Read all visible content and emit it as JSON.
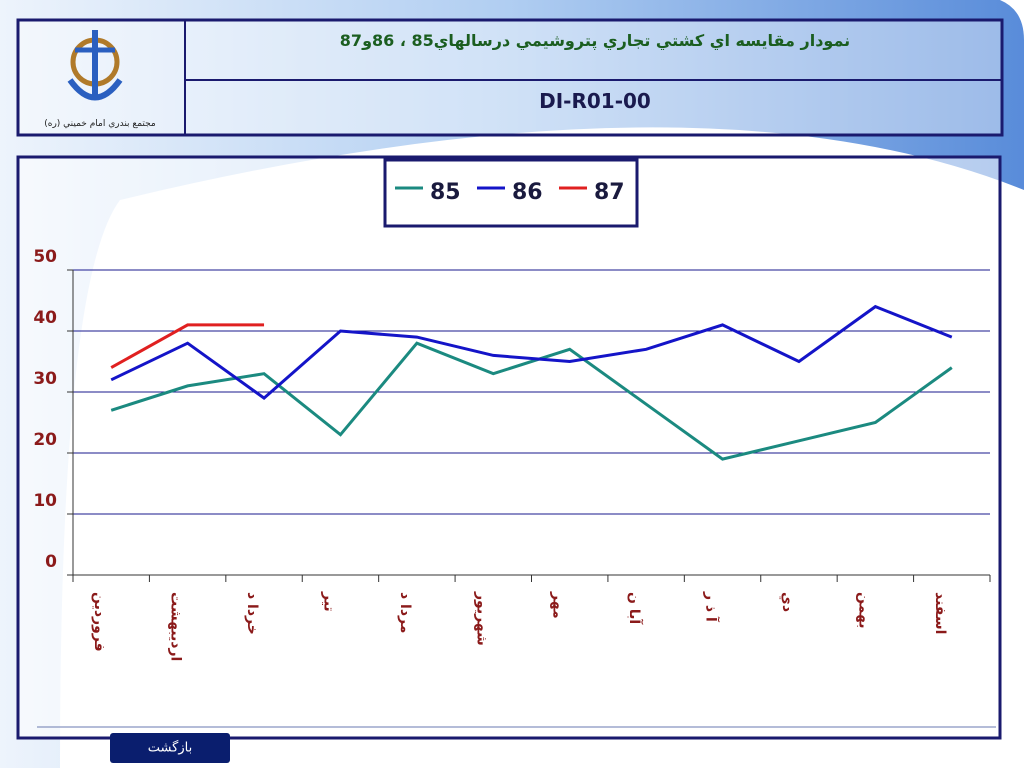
{
  "header": {
    "title": "نمودار مقايسه اي كشتي تجاري پتروشيمي درسالهاي85 ، 86و87",
    "code": "DI-R01-00",
    "logo_caption": "مجتمع بندري امام خميني (ره)"
  },
  "footer": {
    "back_button": "بازگشت"
  },
  "chart_data": {
    "type": "line",
    "categories": [
      "فروردين",
      "ارديبهشت",
      "خردا د",
      "تير",
      "مردا د",
      "شهريور",
      "مهر",
      "آبا ن",
      "آ ذ ر",
      "دي",
      "بهمن",
      "اسفند"
    ],
    "series": [
      {
        "name": "85",
        "color": "#1b8a80",
        "values": [
          27,
          31,
          33,
          23,
          38,
          33,
          37,
          28,
          19,
          22,
          25,
          34
        ]
      },
      {
        "name": "86",
        "color": "#1414c8",
        "values": [
          32,
          38,
          29,
          40,
          39,
          36,
          35,
          37,
          41,
          35,
          44,
          39
        ]
      },
      {
        "name": "87",
        "color": "#e02020",
        "values": [
          34,
          41,
          41,
          null,
          null,
          null,
          null,
          null,
          null,
          null,
          null,
          null
        ]
      }
    ],
    "ylim": [
      0,
      50
    ],
    "yticks": [
      0,
      10,
      20,
      30,
      40,
      50
    ],
    "grid": true,
    "legend": "top"
  }
}
